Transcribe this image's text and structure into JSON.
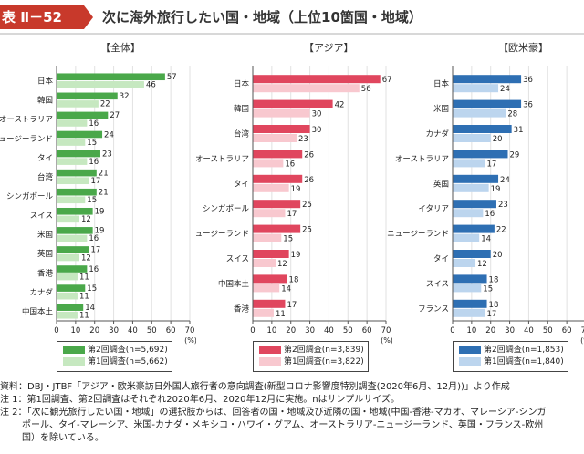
{
  "header": {
    "figure_label": "表 Ⅱ－52",
    "title": "次に海外旅行したい国・地域（上位10箇国・地域）"
  },
  "colors": {
    "all_dark": "#4aa84a",
    "all_light": "#c6e8c0",
    "asia_dark": "#e0465e",
    "asia_light": "#f8c8cf",
    "west_dark": "#2e6fb3",
    "west_light": "#bcd5ee",
    "label_bg": "#c8392b"
  },
  "chart_data": [
    {
      "type": "bar",
      "title": "【全体】",
      "categories": [
        "日本",
        "韓国",
        "オーストラリア",
        "ニュージーランド",
        "タイ",
        "台湾",
        "シンガポール",
        "スイス",
        "米国",
        "英国",
        "香港",
        "カナダ",
        "中国本土"
      ],
      "series": [
        {
          "name": "第2回調査(n=5,692)",
          "values": [
            57,
            32,
            27,
            24,
            23,
            21,
            21,
            19,
            19,
            17,
            16,
            15,
            14
          ]
        },
        {
          "name": "第1回調査(n=5,662)",
          "values": [
            46,
            22,
            16,
            15,
            16,
            17,
            15,
            12,
            16,
            12,
            11,
            11,
            11
          ]
        }
      ],
      "xlim": [
        0,
        70
      ],
      "xticks": [
        0,
        10,
        20,
        30,
        40,
        50,
        60,
        70
      ],
      "xunit": "(%)"
    },
    {
      "type": "bar",
      "title": "【アジア】",
      "categories": [
        "日本",
        "韓国",
        "台湾",
        "オーストラリア",
        "タイ",
        "シンガポール",
        "ニュージーランド",
        "スイス",
        "中国本土",
        "香港"
      ],
      "series": [
        {
          "name": "第2回調査(n=3,839)",
          "values": [
            67,
            42,
            30,
            26,
            26,
            25,
            25,
            19,
            18,
            17
          ]
        },
        {
          "name": "第1回調査(n=3,822)",
          "values": [
            56,
            30,
            23,
            16,
            19,
            17,
            15,
            12,
            14,
            11
          ]
        }
      ],
      "xlim": [
        0,
        70
      ],
      "xticks": [
        0,
        10,
        20,
        30,
        40,
        50,
        60,
        70
      ],
      "xunit": "(%)"
    },
    {
      "type": "bar",
      "title": "【欧米豪】",
      "categories": [
        "日本",
        "米国",
        "カナダ",
        "オーストラリア",
        "英国",
        "イタリア",
        "ニュージーランド",
        "タイ",
        "スイス",
        "フランス"
      ],
      "series": [
        {
          "name": "第2回調査(n=1,853)",
          "values": [
            36,
            36,
            31,
            29,
            24,
            23,
            22,
            20,
            18,
            18
          ]
        },
        {
          "name": "第1回調査(n=1,840)",
          "values": [
            24,
            28,
            20,
            17,
            19,
            16,
            14,
            12,
            15,
            17
          ]
        }
      ],
      "xlim": [
        0,
        70
      ],
      "xticks": [
        0,
        10,
        20,
        30,
        40,
        50,
        60,
        70
      ],
      "xunit": "(%)"
    }
  ],
  "notes": {
    "source": "資料：DBJ・JTBF「アジア・欧米豪訪日外国人旅行者の意向調査(新型コロナ影響度特別調査(2020年6月、12月))」より作成",
    "note1": "注 1：第1回調査、第2回調査はそれぞれ2020年6月、2020年12月に実施。nはサンプルサイズ。",
    "note2": "注 2：「次に観光旅行したい国・地域」の選択肢からは、回答者の国・地域及び近隣の国・地域(中国-香港-マカオ、マレーシア-シンガ",
    "note2_cont1": "ポール、タイ-マレーシア、米国-カナダ・メキシコ・ハワイ・グアム、オーストラリア-ニュージーランド、英国・フランス-欧州",
    "note2_cont2": "国）を除いている。"
  }
}
